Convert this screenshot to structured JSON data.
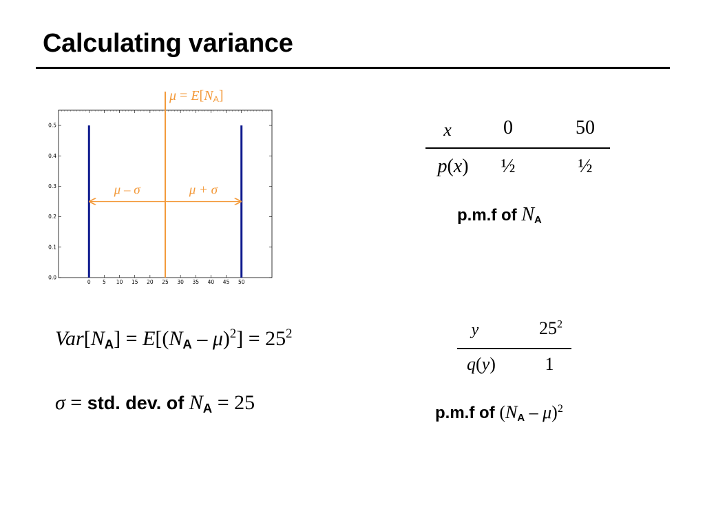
{
  "slide": {
    "title": "Calculating variance"
  },
  "colors": {
    "accent": "#F39A3B",
    "bar": "#0E1A8E",
    "text": "#000000"
  },
  "chart_data": {
    "type": "bar",
    "x": [
      0,
      50
    ],
    "values": [
      0.5,
      0.5
    ],
    "xlim": [
      -10,
      60
    ],
    "ylim": [
      0,
      0.55
    ],
    "xticks": [
      "0",
      "5",
      "10",
      "15",
      "20",
      "25",
      "30",
      "35",
      "40",
      "45",
      "50"
    ],
    "yticks": [
      "0.0",
      "0.1",
      "0.2",
      "0.3",
      "0.4",
      "0.5"
    ],
    "mean_line": {
      "x": 25,
      "label_var": "μ",
      "label_eq": "=",
      "label_E": "E",
      "label_N": "N",
      "label_sub": "A"
    },
    "arrow": {
      "from": 0,
      "to": 50,
      "y": 0.25
    },
    "left_label": "μ – σ",
    "right_label": "μ + σ"
  },
  "table1": {
    "header": {
      "var": "x",
      "values": [
        "0",
        "50"
      ]
    },
    "row": {
      "func": "p",
      "arg": "x",
      "values": [
        "½",
        "½"
      ]
    },
    "label_prefix": "p.m.f of ",
    "label_var": "N",
    "label_sub": "A"
  },
  "table2": {
    "header": {
      "var": "y",
      "value_base": "25",
      "value_exp": "2"
    },
    "row": {
      "func": "q",
      "arg": "y",
      "value": "1"
    },
    "label_prefix": "p.m.f of ",
    "label_open": "(",
    "label_var": "N",
    "label_sub": "A",
    "label_mid": " – ",
    "label_mu": "μ",
    "label_close": ")",
    "label_exp": "2"
  },
  "equations": {
    "variance": {
      "var_word": "Var",
      "bracket_open": "[",
      "N": "N",
      "sub": "A",
      "bracket_close": "]",
      "eq1": " = ",
      "E": "E",
      "inner_open": "[(",
      "N2": "N",
      "sub2": "A",
      "minus": " – ",
      "mu": "μ",
      "inner_close": ")",
      "exp": "2",
      "close": "]",
      "eq2": " = 25",
      "exp2": "2"
    },
    "std": {
      "sigma": "σ",
      "eq": " = ",
      "text": "std. dev. of ",
      "N": "N",
      "sub": "A",
      "eq2": " = 25"
    }
  }
}
